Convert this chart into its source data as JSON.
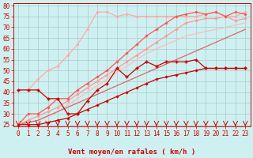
{
  "xlabel": "Vent moyen/en rafales ( km/h )",
  "ylim": [
    24,
    81
  ],
  "xlim": [
    -0.5,
    23.5
  ],
  "yticks": [
    25,
    30,
    35,
    40,
    45,
    50,
    55,
    60,
    65,
    70,
    75,
    80
  ],
  "xticks": [
    0,
    1,
    2,
    3,
    4,
    5,
    6,
    7,
    8,
    9,
    10,
    11,
    12,
    13,
    14,
    15,
    16,
    17,
    18,
    19,
    20,
    21,
    22,
    23
  ],
  "background_color": "#cff0f0",
  "grid_color": "#aacccc",
  "series": [
    {
      "x": [
        0,
        1,
        2,
        3,
        4,
        5,
        6,
        7,
        8,
        9,
        10,
        11,
        12,
        13,
        14,
        15,
        16,
        17,
        18,
        19,
        20,
        21,
        22,
        23
      ],
      "y": [
        25,
        25,
        25,
        26,
        27,
        28,
        30,
        32,
        34,
        36,
        38,
        40,
        42,
        44,
        46,
        47,
        48,
        49,
        50,
        51,
        51,
        51,
        51,
        51
      ],
      "color": "#cc0000",
      "lw": 0.9,
      "marker": "D",
      "ms": 1.8,
      "zorder": 5
    },
    {
      "x": [
        0,
        1,
        2,
        3,
        4,
        5,
        6,
        7,
        8,
        9,
        10,
        11,
        12,
        13,
        14,
        15,
        16,
        17,
        18,
        19,
        20,
        21,
        22,
        23
      ],
      "y": [
        41,
        41,
        41,
        37,
        37,
        30,
        30,
        36,
        41,
        44,
        51,
        47,
        51,
        54,
        52,
        54,
        54,
        54,
        55,
        51,
        51,
        51,
        51,
        51
      ],
      "color": "#cc0000",
      "lw": 0.9,
      "marker": "P",
      "ms": 2.5,
      "zorder": 5
    },
    {
      "x": [
        0,
        1,
        2,
        3,
        4,
        5,
        6,
        7,
        8,
        9,
        10,
        11,
        12,
        13,
        14,
        15,
        16,
        17,
        18,
        19,
        20,
        21,
        22,
        23
      ],
      "y": [
        25,
        26,
        27,
        29,
        31,
        33,
        35,
        37,
        39,
        41,
        43,
        45,
        47,
        49,
        51,
        53,
        55,
        57,
        59,
        61,
        63,
        65,
        67,
        69
      ],
      "color": "#dd6666",
      "lw": 0.9,
      "marker": null,
      "ms": 0,
      "zorder": 3
    },
    {
      "x": [
        0,
        1,
        2,
        3,
        4,
        5,
        6,
        7,
        8,
        9,
        10,
        11,
        12,
        13,
        14,
        15,
        16,
        17,
        18,
        19,
        20,
        21,
        22,
        23
      ],
      "y": [
        25,
        27,
        29,
        31,
        33,
        36,
        39,
        42,
        45,
        48,
        51,
        54,
        57,
        60,
        63,
        66,
        69,
        72,
        73,
        74,
        74,
        75,
        73,
        74
      ],
      "color": "#ff9999",
      "lw": 0.9,
      "marker": "D",
      "ms": 1.8,
      "zorder": 4
    },
    {
      "x": [
        0,
        1,
        2,
        3,
        4,
        5,
        6,
        7,
        8,
        9,
        10,
        11,
        12,
        13,
        14,
        15,
        16,
        17,
        18,
        19,
        20,
        21,
        22,
        23
      ],
      "y": [
        25,
        30,
        30,
        33,
        37,
        37,
        41,
        44,
        47,
        50,
        54,
        58,
        62,
        66,
        69,
        72,
        75,
        76,
        77,
        76,
        77,
        75,
        77,
        76
      ],
      "color": "#ff5555",
      "lw": 0.9,
      "marker": "D",
      "ms": 1.8,
      "zorder": 4
    },
    {
      "x": [
        0,
        1,
        2,
        3,
        4,
        5,
        6,
        7,
        8,
        9,
        10,
        11,
        12,
        13,
        14,
        15,
        16,
        17,
        18,
        19,
        20,
        21,
        22,
        23
      ],
      "y": [
        41,
        41,
        46,
        50,
        52,
        57,
        62,
        69,
        77,
        77,
        75,
        76,
        75,
        75,
        75,
        75,
        75,
        75,
        75,
        76,
        77,
        75,
        75,
        77
      ],
      "color": "#ffaaaa",
      "lw": 0.9,
      "marker": "D",
      "ms": 1.8,
      "zorder": 3
    },
    {
      "x": [
        0,
        1,
        2,
        3,
        4,
        5,
        6,
        7,
        8,
        9,
        10,
        11,
        12,
        13,
        14,
        15,
        16,
        17,
        18,
        19,
        20,
        21,
        22,
        23
      ],
      "y": [
        25,
        26,
        27,
        29,
        31,
        34,
        37,
        40,
        43,
        46,
        49,
        52,
        55,
        58,
        60,
        62,
        64,
        66,
        67,
        68,
        69,
        70,
        71,
        72
      ],
      "color": "#ffbbbb",
      "lw": 0.9,
      "marker": null,
      "ms": 0,
      "zorder": 2
    }
  ],
  "arrow_color": "#cc0000",
  "axis_fontsize": 6.5,
  "tick_fontsize": 5.5
}
